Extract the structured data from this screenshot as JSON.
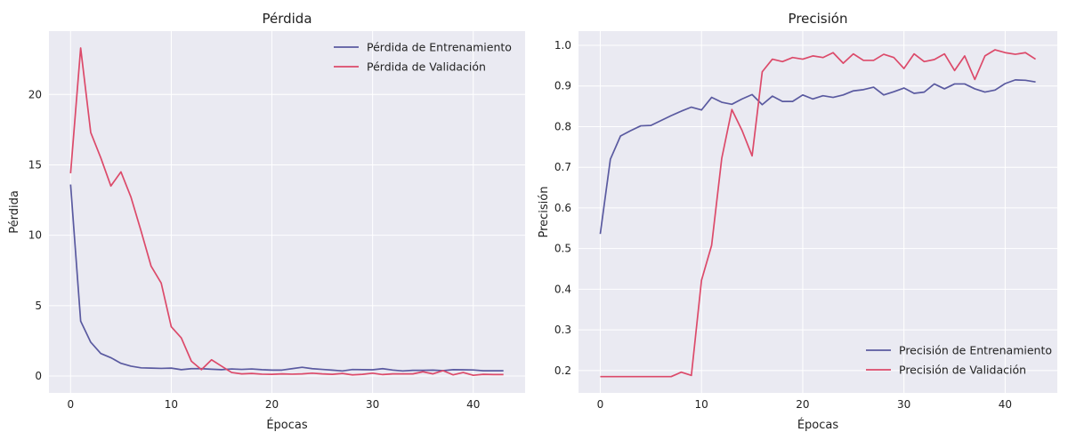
{
  "chart_data": [
    {
      "type": "line",
      "title": "Pérdida",
      "xlabel": "Épocas",
      "ylabel": "Pérdida",
      "xlim": [
        -2.15,
        45.15
      ],
      "ylim": [
        -1.2,
        24.5
      ],
      "xticks": [
        0,
        10,
        20,
        30,
        40
      ],
      "yticks": [
        0,
        5,
        10,
        15,
        20
      ],
      "grid": true,
      "legend": "top-right",
      "x": [
        0,
        1,
        2,
        3,
        4,
        5,
        6,
        7,
        8,
        9,
        10,
        11,
        12,
        13,
        14,
        15,
        16,
        17,
        18,
        19,
        20,
        21,
        22,
        23,
        24,
        25,
        26,
        27,
        28,
        29,
        30,
        31,
        32,
        33,
        34,
        35,
        36,
        37,
        38,
        39,
        40,
        41,
        42,
        43
      ],
      "series": [
        {
          "name": "Pérdida de Entrenamiento",
          "color": "#5a5aa0",
          "values": [
            13.6,
            3.9,
            2.4,
            1.6,
            1.3,
            0.9,
            0.7,
            0.58,
            0.56,
            0.54,
            0.56,
            0.45,
            0.52,
            0.52,
            0.48,
            0.45,
            0.5,
            0.47,
            0.5,
            0.45,
            0.42,
            0.42,
            0.52,
            0.62,
            0.52,
            0.47,
            0.42,
            0.36,
            0.46,
            0.45,
            0.44,
            0.52,
            0.42,
            0.36,
            0.4,
            0.4,
            0.42,
            0.38,
            0.45,
            0.44,
            0.43,
            0.37,
            0.37,
            0.37
          ]
        },
        {
          "name": "Pérdida de Validación",
          "color": "#dc4a6a",
          "values": [
            14.4,
            23.3,
            17.3,
            15.5,
            13.5,
            14.5,
            12.7,
            10.3,
            7.8,
            6.6,
            3.5,
            2.7,
            1.05,
            0.45,
            1.15,
            0.7,
            0.25,
            0.15,
            0.18,
            0.13,
            0.12,
            0.15,
            0.13,
            0.15,
            0.2,
            0.15,
            0.12,
            0.18,
            0.08,
            0.12,
            0.2,
            0.1,
            0.15,
            0.15,
            0.15,
            0.3,
            0.15,
            0.38,
            0.08,
            0.25,
            0.05,
            0.12,
            0.1,
            0.1
          ]
        }
      ]
    },
    {
      "type": "line",
      "title": "Precisión",
      "xlabel": "Épocas",
      "ylabel": "Precisión",
      "xlim": [
        -2.15,
        45.15
      ],
      "ylim": [
        0.145,
        1.035
      ],
      "xticks": [
        0,
        10,
        20,
        30,
        40
      ],
      "yticks": [
        0.2,
        0.3,
        0.4,
        0.5,
        0.6,
        0.7,
        0.8,
        0.9,
        1.0
      ],
      "ytick_labels": [
        "0.2",
        "0.3",
        "0.4",
        "0.5",
        "0.6",
        "0.7",
        "0.8",
        "0.9",
        "1.0"
      ],
      "grid": true,
      "legend": "bottom-right",
      "x": [
        0,
        1,
        2,
        3,
        4,
        5,
        6,
        7,
        8,
        9,
        10,
        11,
        12,
        13,
        14,
        15,
        16,
        17,
        18,
        19,
        20,
        21,
        22,
        23,
        24,
        25,
        26,
        27,
        28,
        29,
        30,
        31,
        32,
        33,
        34,
        35,
        36,
        37,
        38,
        39,
        40,
        41,
        42,
        43
      ],
      "series": [
        {
          "name": "Precisión de Entrenamiento",
          "color": "#5a5aa0",
          "values": [
            0.536,
            0.72,
            0.777,
            0.79,
            0.802,
            0.803,
            0.815,
            0.827,
            0.838,
            0.848,
            0.841,
            0.872,
            0.86,
            0.855,
            0.868,
            0.879,
            0.854,
            0.875,
            0.862,
            0.862,
            0.878,
            0.868,
            0.876,
            0.872,
            0.878,
            0.888,
            0.891,
            0.897,
            0.878,
            0.886,
            0.895,
            0.882,
            0.885,
            0.905,
            0.893,
            0.905,
            0.905,
            0.893,
            0.885,
            0.89,
            0.906,
            0.915,
            0.914,
            0.91
          ]
        },
        {
          "name": "Precisión de Validación",
          "color": "#dc4a6a",
          "values": [
            0.185,
            0.185,
            0.185,
            0.185,
            0.185,
            0.185,
            0.185,
            0.185,
            0.196,
            0.188,
            0.422,
            0.508,
            0.722,
            0.842,
            0.791,
            0.728,
            0.935,
            0.966,
            0.96,
            0.97,
            0.966,
            0.974,
            0.97,
            0.982,
            0.956,
            0.979,
            0.963,
            0.963,
            0.978,
            0.97,
            0.943,
            0.979,
            0.96,
            0.965,
            0.979,
            0.938,
            0.974,
            0.916,
            0.974,
            0.989,
            0.982,
            0.978,
            0.982,
            0.966
          ]
        }
      ]
    }
  ]
}
